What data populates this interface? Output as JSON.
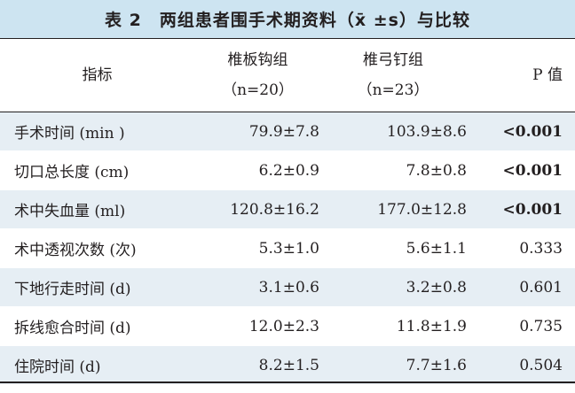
{
  "header": {
    "title": "表 2　两组患者围手术期资料（x̄ ±s）与比较"
  },
  "table": {
    "columns": [
      {
        "name": "指标"
      },
      {
        "name": "椎板钩组",
        "sub": "（n=20）"
      },
      {
        "name": "椎弓钉组",
        "sub": "（n=23）"
      },
      {
        "name": "P 值"
      }
    ],
    "rows": [
      [
        "手术时间 (min )",
        "79.9±7.8",
        "103.9±8.6",
        "<0.001"
      ],
      [
        "切口总长度 (cm)",
        "6.2±0.9",
        "7.8±0.8",
        "<0.001"
      ],
      [
        "术中失血量 (ml)",
        "120.8±16.2",
        "177.0±12.8",
        "<0.001"
      ],
      [
        "术中透视次数 (次)",
        "5.3±1.0",
        "5.6±1.1",
        "0.333"
      ],
      [
        "下地行走时间 (d)",
        "3.1±0.6",
        "3.2±0.8",
        "0.601"
      ],
      [
        "拆线愈合时间 (d)",
        "12.0±2.3",
        "11.8±1.9",
        "0.735"
      ],
      [
        "住院时间 (d)",
        "8.2±1.5",
        "7.7±1.6",
        "0.504"
      ]
    ]
  }
}
